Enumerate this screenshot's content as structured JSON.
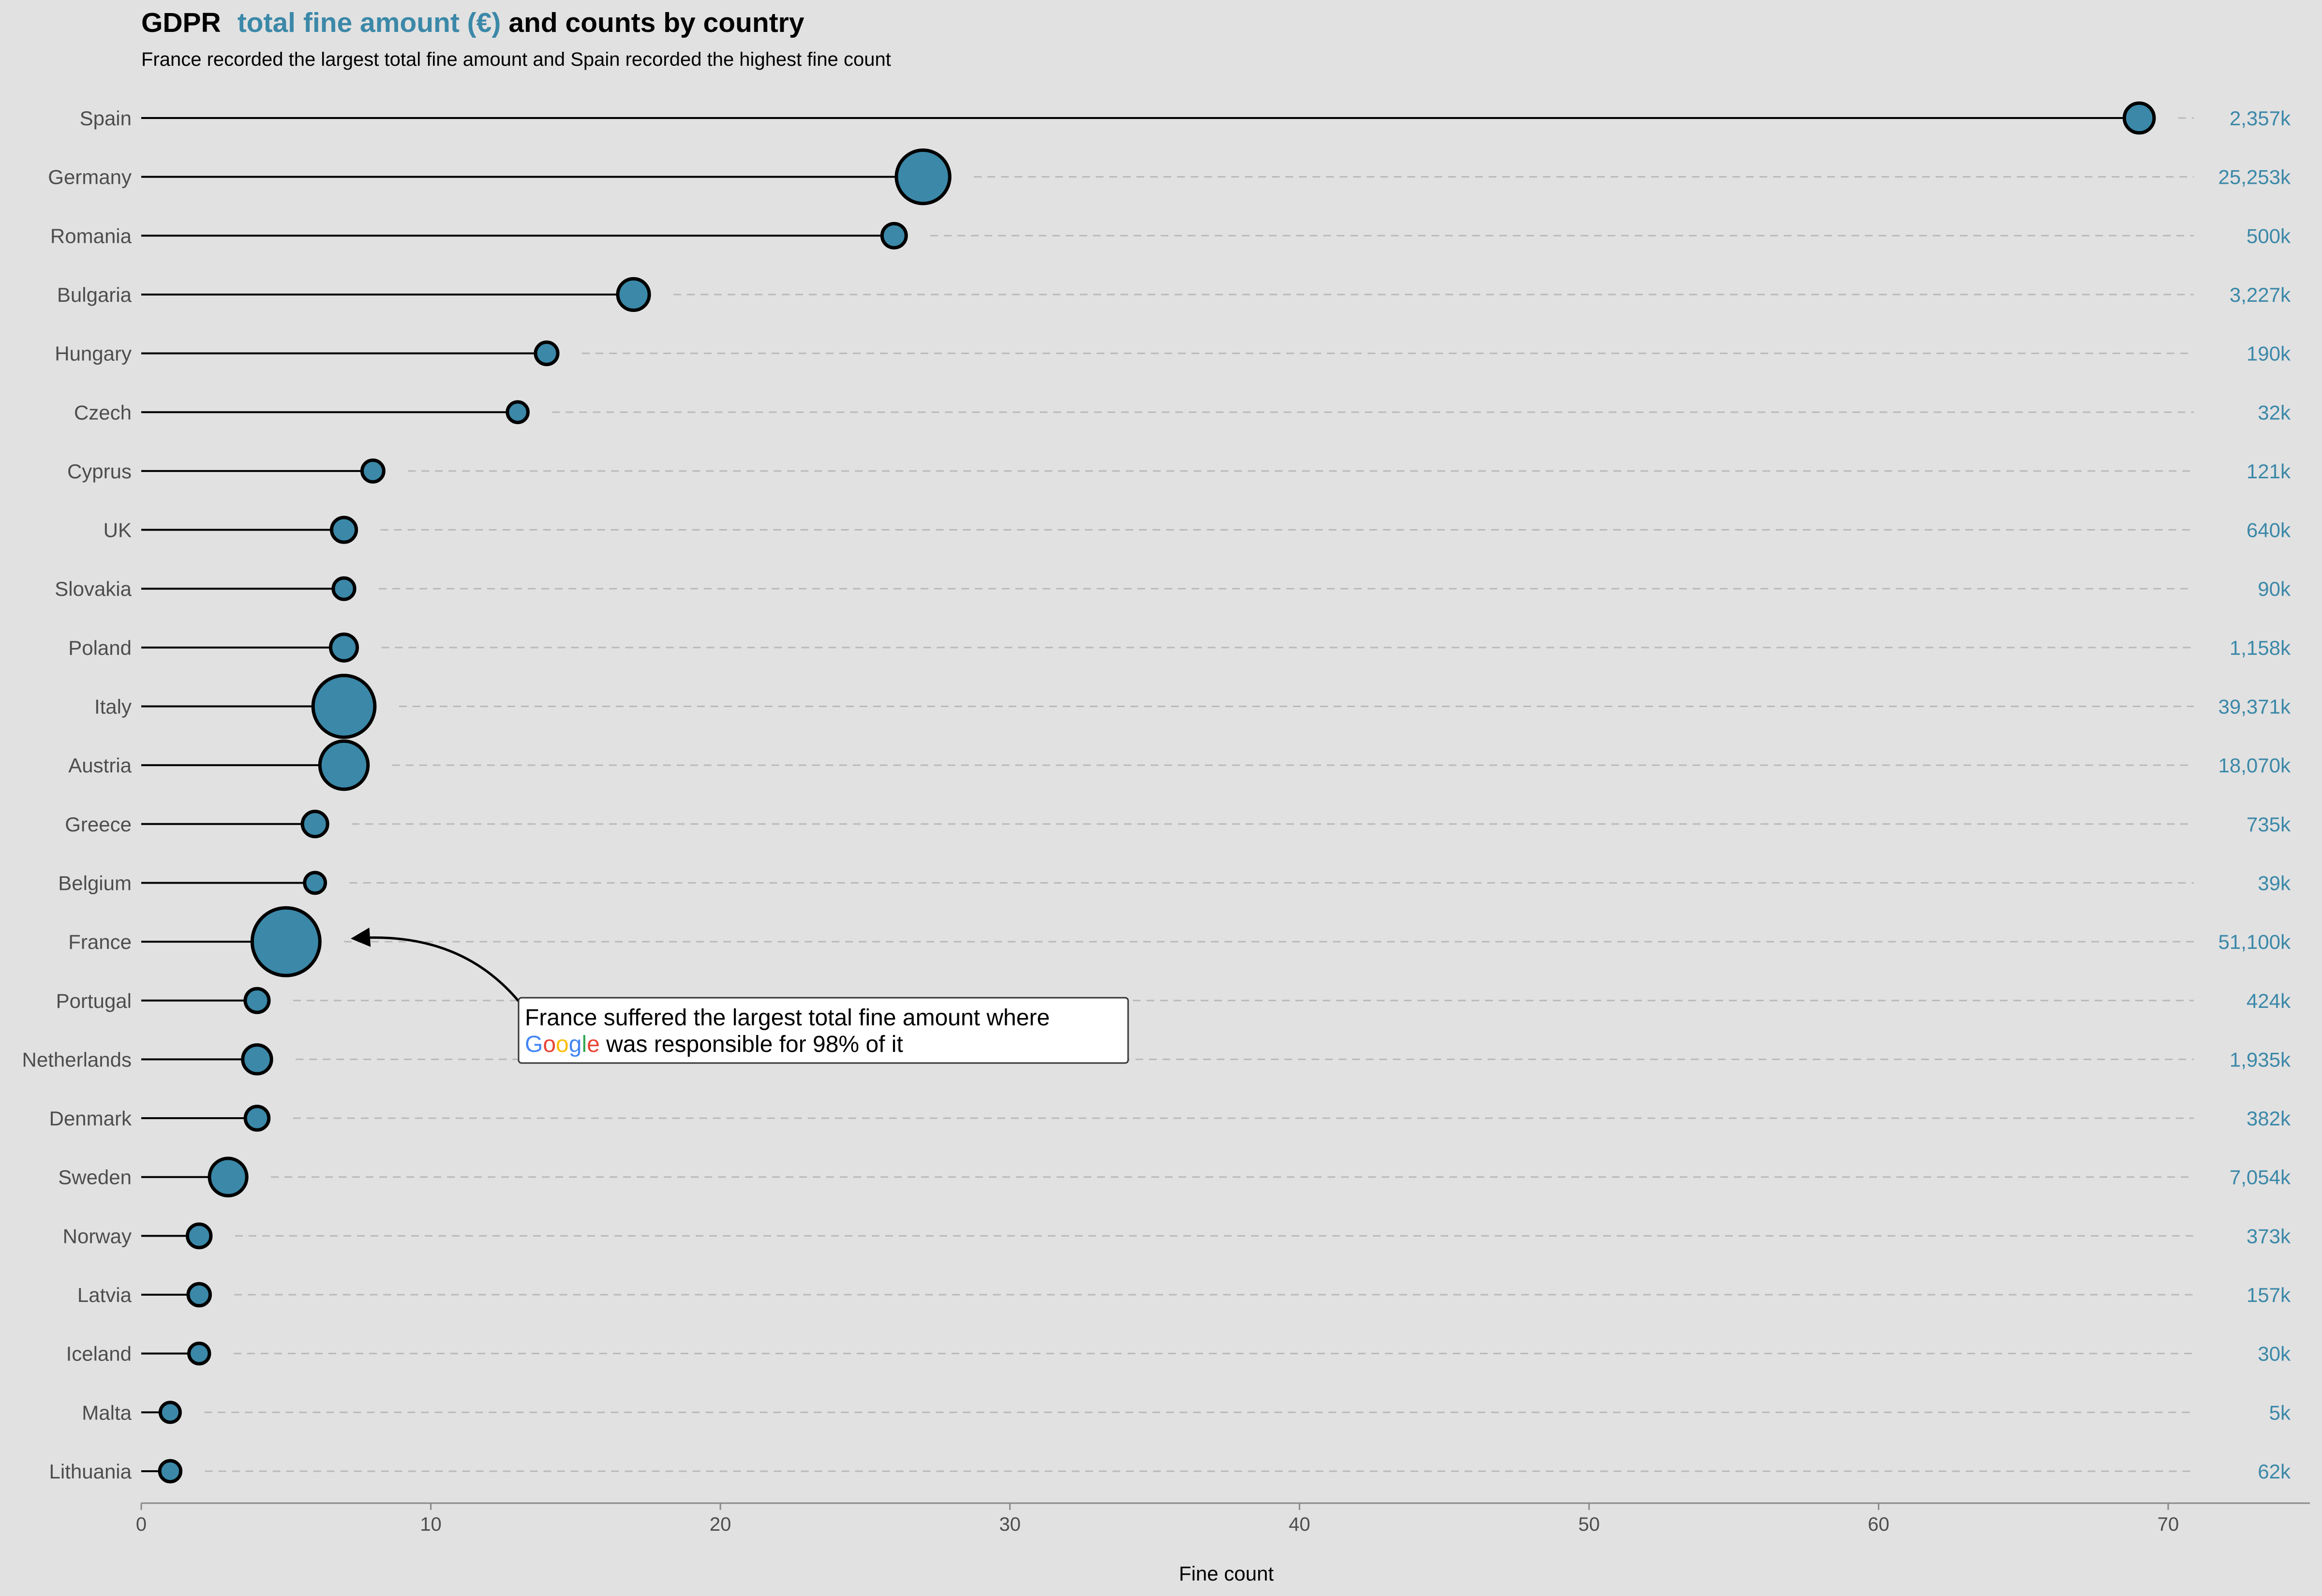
{
  "title": {
    "prefix": "GDPR",
    "highlight": "total fine amount (€)",
    "suffix": "and counts by country",
    "highlight_color": "#3b88a8"
  },
  "subtitle": "France recorded the largest total fine amount and Spain recorded the highest fine count",
  "annotation": {
    "line1": "France suffered the largest total fine amount where",
    "google_letters": [
      {
        "ch": "G",
        "color": "#4285F4"
      },
      {
        "ch": "o",
        "color": "#EA4335"
      },
      {
        "ch": "o",
        "color": "#FBBC05"
      },
      {
        "ch": "g",
        "color": "#4285F4"
      },
      {
        "ch": "l",
        "color": "#34A853"
      },
      {
        "ch": "e",
        "color": "#EA4335"
      }
    ],
    "line2_rest": " was responsible for 98% of it",
    "target_country": "France"
  },
  "chart_data": {
    "type": "lollipop",
    "title": "GDPR total fine amount (€) and counts by country",
    "xlabel": "Fine count",
    "ylabel": "",
    "xlim": [
      0,
      75
    ],
    "xticks": [
      0,
      10,
      20,
      30,
      40,
      50,
      60,
      70
    ],
    "point_color": "#3b88a8",
    "rows": [
      {
        "country": "Spain",
        "count": 69,
        "amount_k": 2357,
        "amount_label": "2,357k"
      },
      {
        "country": "Germany",
        "count": 27,
        "amount_k": 25253,
        "amount_label": "25,253k"
      },
      {
        "country": "Romania",
        "count": 26,
        "amount_k": 500,
        "amount_label": "500k"
      },
      {
        "country": "Bulgaria",
        "count": 17,
        "amount_k": 3227,
        "amount_label": "3,227k"
      },
      {
        "country": "Hungary",
        "count": 14,
        "amount_k": 190,
        "amount_label": "190k"
      },
      {
        "country": "Czech",
        "count": 13,
        "amount_k": 32,
        "amount_label": "32k"
      },
      {
        "country": "Cyprus",
        "count": 8,
        "amount_k": 121,
        "amount_label": "121k"
      },
      {
        "country": "UK",
        "count": 7,
        "amount_k": 640,
        "amount_label": "640k"
      },
      {
        "country": "Slovakia",
        "count": 7,
        "amount_k": 90,
        "amount_label": "90k"
      },
      {
        "country": "Poland",
        "count": 7,
        "amount_k": 1158,
        "amount_label": "1,158k"
      },
      {
        "country": "Italy",
        "count": 7,
        "amount_k": 39371,
        "amount_label": "39,371k"
      },
      {
        "country": "Austria",
        "count": 7,
        "amount_k": 18070,
        "amount_label": "18,070k"
      },
      {
        "country": "Greece",
        "count": 6,
        "amount_k": 735,
        "amount_label": "735k"
      },
      {
        "country": "Belgium",
        "count": 6,
        "amount_k": 39,
        "amount_label": "39k"
      },
      {
        "country": "France",
        "count": 5,
        "amount_k": 51100,
        "amount_label": "51,100k"
      },
      {
        "country": "Portugal",
        "count": 4,
        "amount_k": 424,
        "amount_label": "424k"
      },
      {
        "country": "Netherlands",
        "count": 4,
        "amount_k": 1935,
        "amount_label": "1,935k"
      },
      {
        "country": "Denmark",
        "count": 4,
        "amount_k": 382,
        "amount_label": "382k"
      },
      {
        "country": "Sweden",
        "count": 3,
        "amount_k": 7054,
        "amount_label": "7,054k"
      },
      {
        "country": "Norway",
        "count": 2,
        "amount_k": 373,
        "amount_label": "373k"
      },
      {
        "country": "Latvia",
        "count": 2,
        "amount_k": 157,
        "amount_label": "157k"
      },
      {
        "country": "Iceland",
        "count": 2,
        "amount_k": 30,
        "amount_label": "30k"
      },
      {
        "country": "Malta",
        "count": 1,
        "amount_k": 5,
        "amount_label": "5k"
      },
      {
        "country": "Lithuania",
        "count": 1,
        "amount_k": 62,
        "amount_label": "62k"
      }
    ]
  }
}
